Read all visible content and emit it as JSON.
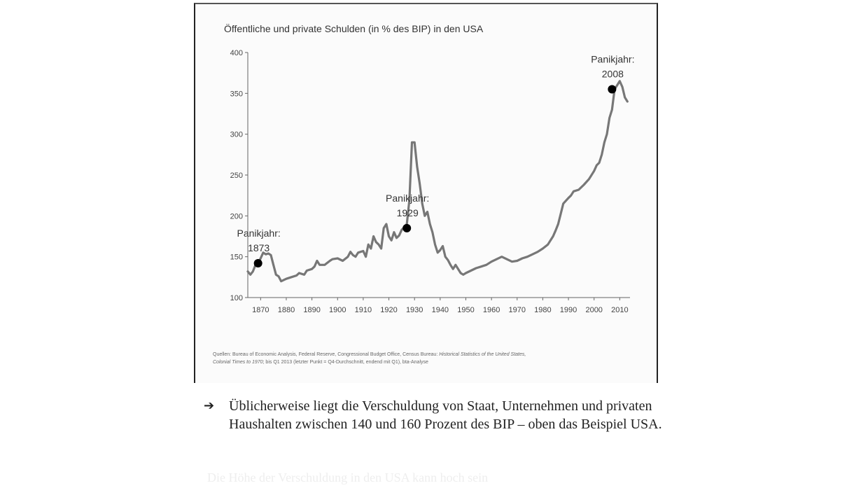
{
  "chart_data": {
    "type": "line",
    "title": "Öffentliche und private Schulden (in % des BIP) in den USA",
    "xlabel": "",
    "ylabel": "",
    "xlim": [
      1865,
      2014
    ],
    "ylim": [
      100,
      400
    ],
    "x_ticks": [
      1870,
      1880,
      1890,
      1900,
      1910,
      1920,
      1930,
      1940,
      1950,
      1960,
      1970,
      1980,
      1990,
      2000,
      2010
    ],
    "y_ticks": [
      100,
      150,
      200,
      250,
      300,
      350,
      400
    ],
    "grid": false,
    "legend": "none",
    "line_color": "#777777",
    "series": [
      {
        "x": [
          1865,
          1866,
          1867,
          1868,
          1869,
          1870,
          1871,
          1872,
          1873,
          1874,
          1875,
          1876,
          1877,
          1878,
          1880,
          1882,
          1884,
          1885,
          1887,
          1888,
          1890,
          1891,
          1892,
          1893,
          1895,
          1897,
          1898,
          1900,
          1902,
          1904,
          1905,
          1906,
          1907,
          1908,
          1910,
          1911,
          1912,
          1913,
          1914,
          1915,
          1916,
          1917,
          1918,
          1919,
          1920,
          1921,
          1922,
          1923,
          1924,
          1925,
          1926,
          1927,
          1928,
          1929,
          1930,
          1931,
          1932,
          1933,
          1934,
          1935,
          1936,
          1937,
          1938,
          1939,
          1940,
          1941,
          1942,
          1943,
          1944,
          1945,
          1946,
          1948,
          1949,
          1950,
          1952,
          1954,
          1956,
          1958,
          1960,
          1962,
          1964,
          1966,
          1968,
          1970,
          1972,
          1974,
          1976,
          1978,
          1980,
          1982,
          1984,
          1985,
          1986,
          1988,
          1990,
          1991,
          1992,
          1994,
          1996,
          1998,
          2000,
          2001,
          2002,
          2003,
          2004,
          2005,
          2006,
          2007,
          2008,
          2009,
          2010,
          2011,
          2012,
          2013
        ],
        "y": [
          132,
          128,
          132,
          140,
          142,
          148,
          155,
          153,
          154,
          152,
          140,
          128,
          126,
          120,
          123,
          125,
          127,
          130,
          128,
          133,
          135,
          138,
          145,
          140,
          140,
          145,
          147,
          148,
          145,
          150,
          156,
          152,
          150,
          155,
          157,
          150,
          165,
          160,
          175,
          168,
          165,
          160,
          185,
          190,
          175,
          170,
          180,
          173,
          176,
          183,
          186,
          190,
          220,
          290,
          290,
          260,
          240,
          215,
          200,
          205,
          190,
          180,
          165,
          155,
          158,
          163,
          150,
          146,
          140,
          135,
          140,
          130,
          128,
          130,
          133,
          136,
          138,
          140,
          144,
          147,
          150,
          147,
          144,
          145,
          148,
          150,
          153,
          156,
          160,
          165,
          175,
          182,
          190,
          215,
          222,
          225,
          230,
          232,
          238,
          245,
          255,
          262,
          265,
          275,
          290,
          300,
          320,
          330,
          355,
          360,
          365,
          358,
          345,
          340
        ]
      }
    ],
    "annotations": [
      {
        "label_line1": "Panikjahr:",
        "label_line2": "1873",
        "x": 1869,
        "y": 142
      },
      {
        "label_line1": "Panikjahr:",
        "label_line2": "1929",
        "x": 1927,
        "y": 185
      },
      {
        "label_line1": "Panikjahr:",
        "label_line2": "2008",
        "x": 2007,
        "y": 355
      }
    ]
  },
  "sources": {
    "line1_prefix": "Quellen: Bureau of Economic Analysis, Federal Reserve, Congressional Budget Office, Census Bureau: ",
    "line1_italic": "Historical Statistics of the United States,",
    "line2_italic": "Colonial Times to 1970",
    "line2_suffix": "; bis Q1 2013 (letzter Punkt = Q4-Durchschnitt, endend mit Q1), bta-Analyse"
  },
  "caption": {
    "arrow": "➔",
    "text": "Üblicherweise liegt die Verschuldung von Staat, Unternehmen und privaten Haushalten zwischen 140 und 160 Prozent des BIP – oben das Beispiel USA."
  },
  "ghost_text": "Die Höhe der Verschuldung in den USA kann hoch sein"
}
